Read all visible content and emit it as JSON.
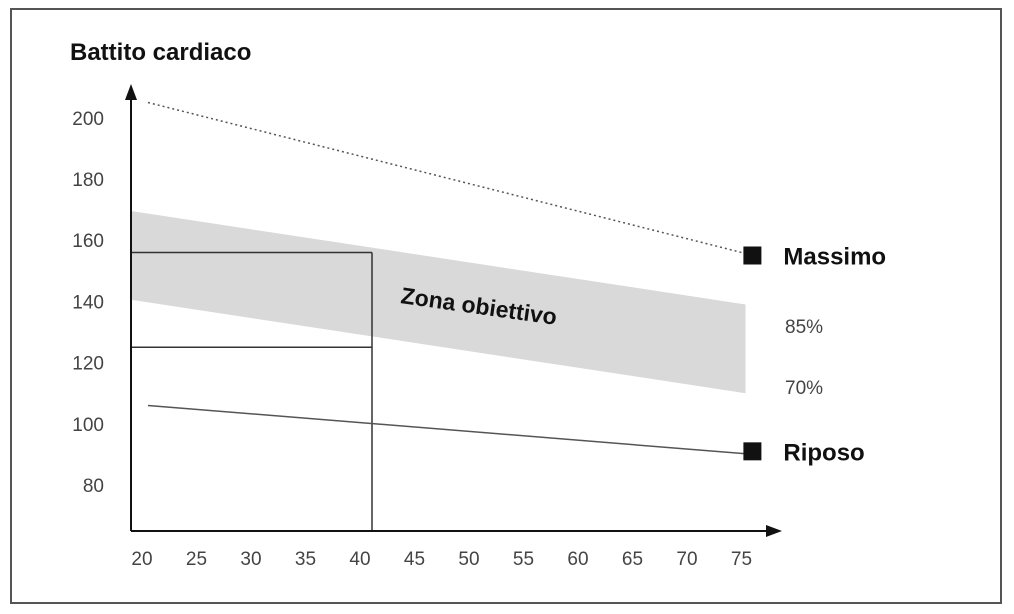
{
  "chart_data": {
    "type": "line",
    "ylabel": "Battito cardiaco",
    "xlabel": "",
    "x_ticks": [
      "20",
      "25",
      "30",
      "35",
      "40",
      "45",
      "50",
      "55",
      "60",
      "65",
      "70",
      "75"
    ],
    "y_ticks": [
      "80",
      "100",
      "120",
      "140",
      "160",
      "180",
      "200"
    ],
    "xlim": [
      20,
      77
    ],
    "ylim": [
      62,
      213
    ],
    "series": [
      {
        "name": "Massimo",
        "x": [
          20,
          75
        ],
        "y": [
          205,
          155
        ],
        "style": "dotted"
      },
      {
        "name": "Riposo",
        "x": [
          20,
          75
        ],
        "y": [
          106,
          90
        ],
        "style": "solid"
      }
    ],
    "band": {
      "name": "Zona obiettivo",
      "x": [
        20,
        75
      ],
      "upper": [
        169,
        139
      ],
      "lower": [
        140,
        110
      ],
      "upper_label": "85%",
      "lower_label": "70%",
      "color": "#d9d9d9"
    },
    "reference_lines": {
      "x": 40,
      "y_upper": 156,
      "y_lower": 125
    },
    "markers": [
      {
        "label": "Massimo",
        "x": 76,
        "y": 155
      },
      {
        "label": "Riposo",
        "x": 76,
        "y": 91
      }
    ]
  }
}
